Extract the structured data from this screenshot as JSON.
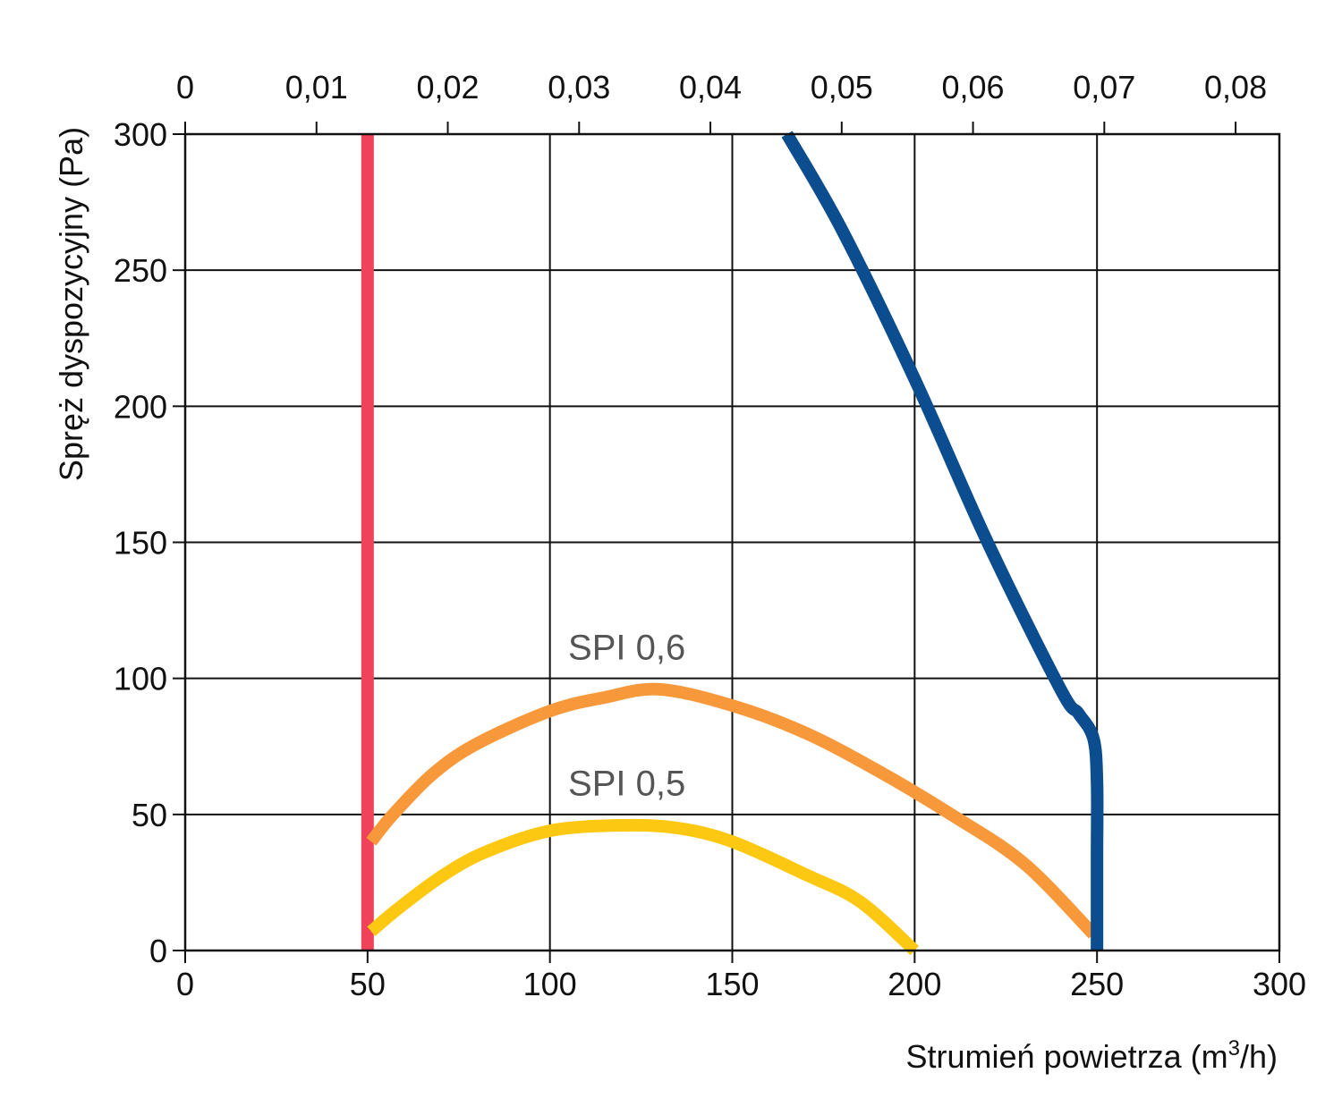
{
  "chart_data": {
    "type": "line",
    "xlabel": "Strumień powietrza (m",
    "xlabel_sup": "3",
    "xlabel_tail": "/h)",
    "ylabel": "Spręż dyspozycyjny (Pa)",
    "xlim": [
      0,
      300
    ],
    "ylim": [
      0,
      300
    ],
    "x_ticks": [
      "0",
      "50",
      "100",
      "150",
      "200",
      "250",
      "300"
    ],
    "y_ticks": [
      "0",
      "50",
      "100",
      "150",
      "200",
      "250",
      "300"
    ],
    "secondary_x_ticks": [
      "0",
      "0,01",
      "0,02",
      "0,03",
      "0,04",
      "0,05",
      "0,06",
      "0,07",
      "0,08"
    ],
    "secondary_x_values": [
      0,
      0.01,
      0.02,
      0.03,
      0.04,
      0.05,
      0.06,
      0.07,
      0.08
    ],
    "secondary_x_scale": 3600,
    "grid": true,
    "series": [
      {
        "color": "#f0435a",
        "x": [
          50,
          50
        ],
        "y": [
          0,
          300
        ]
      },
      {
        "name": "SPI 0,6",
        "color": "#f7993a",
        "x": [
          51,
          57,
          68,
          80,
          100,
          115,
          130,
          150,
          170,
          190,
          210,
          230,
          249
        ],
        "y": [
          40,
          50,
          65,
          76,
          88,
          93,
          96,
          90,
          80,
          66,
          50,
          32,
          6
        ]
      },
      {
        "name": "SPI 0,5",
        "color": "#fdc812",
        "x": [
          51,
          58,
          70,
          82,
          100,
          120,
          135,
          150,
          170,
          185,
          200
        ],
        "y": [
          7,
          15,
          27,
          36,
          44,
          46,
          45,
          40,
          28,
          18,
          0
        ]
      },
      {
        "color": "#0b4d8e",
        "x": [
          165,
          180,
          200,
          220,
          240,
          245,
          249,
          250,
          250,
          250
        ],
        "y": [
          300,
          265,
          210,
          150,
          96,
          87,
          78,
          62,
          35,
          0
        ]
      }
    ],
    "annotations": [
      {
        "text": "SPI 0,6",
        "x": 105,
        "y": 107
      },
      {
        "text": "SPI 0,5",
        "x": 105,
        "y": 57
      }
    ]
  }
}
